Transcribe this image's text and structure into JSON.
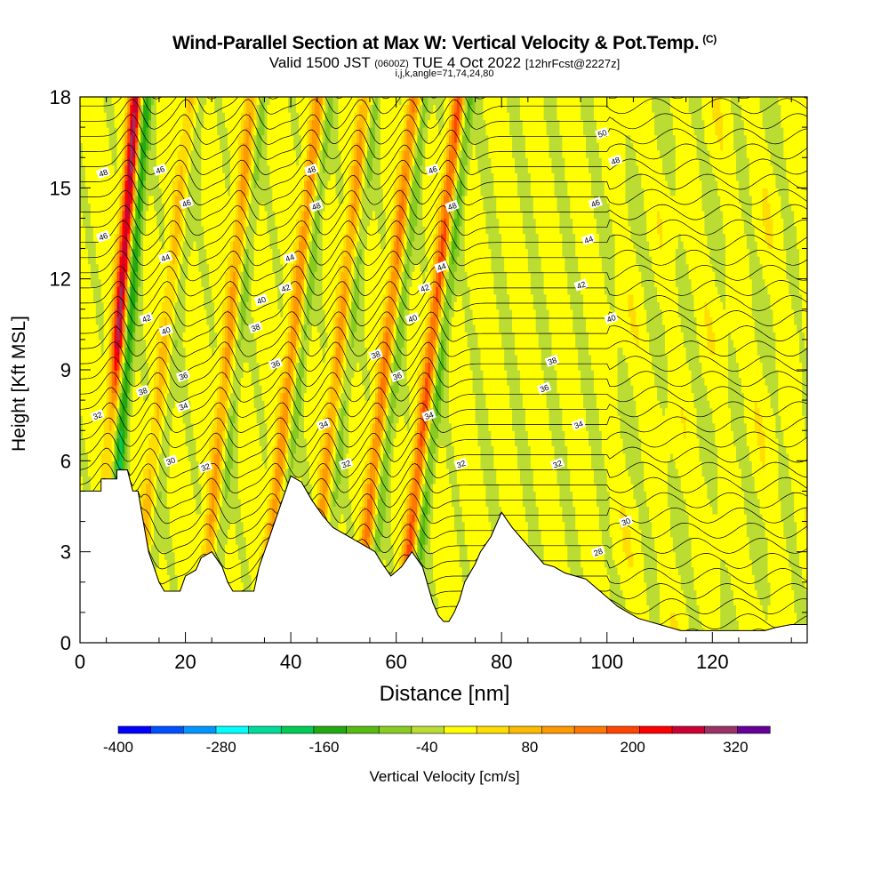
{
  "header": {
    "title": "Wind-Parallel Section at Max W: Vertical Velocity & Pot.Temp.",
    "copyright": "(C)",
    "valid_prefix": "Valid 1500 JST",
    "valid_utc": "(0600Z)",
    "valid_date": "TUE 4 Oct 2022",
    "forecast": "[12hrFcst@2227z]",
    "indices": "i,j,k,angle=71,74,24,80"
  },
  "chart_data": {
    "type": "heatmap",
    "xlabel": "Distance [nm]",
    "ylabel": "Height [Kft MSL]",
    "xlim": [
      0,
      138
    ],
    "ylim": [
      0,
      18
    ],
    "x_ticks": [
      0,
      20,
      40,
      60,
      80,
      100,
      120
    ],
    "y_ticks": [
      0,
      3,
      6,
      9,
      12,
      15,
      18
    ],
    "colorbar": {
      "label": "Vertical Velocity [cm/s]",
      "min": -400,
      "max": 360,
      "step": 40,
      "tick_labels": [
        "-400",
        "-280",
        "-160",
        "-40",
        "80",
        "200",
        "320"
      ],
      "tick_values": [
        -400,
        -280,
        -160,
        -40,
        80,
        200,
        320
      ],
      "colors": [
        "#0000ff",
        "#0050ff",
        "#0096ff",
        "#00ffff",
        "#00dd99",
        "#00cc55",
        "#22aa11",
        "#55bb11",
        "#88cc22",
        "#bbdd33",
        "#ffff00",
        "#ffdd00",
        "#ffbb00",
        "#ff9900",
        "#ff7700",
        "#ff4400",
        "#ff0000",
        "#cc0033",
        "#993366",
        "#660099"
      ]
    },
    "background_color": "#f7f000",
    "terrain_kft": [
      [
        0,
        5
      ],
      [
        2,
        5
      ],
      [
        4,
        5
      ],
      [
        4,
        5.4
      ],
      [
        7,
        5.4
      ],
      [
        7,
        5.7
      ],
      [
        9,
        5.7
      ],
      [
        10,
        5
      ],
      [
        11,
        5
      ],
      [
        12,
        4
      ],
      [
        13,
        3
      ],
      [
        14,
        2.5
      ],
      [
        15,
        2
      ],
      [
        16,
        1.7
      ],
      [
        19,
        1.7
      ],
      [
        20,
        2.2
      ],
      [
        22,
        2.4
      ],
      [
        23,
        2.8
      ],
      [
        25,
        3
      ],
      [
        27,
        2.5
      ],
      [
        28,
        2
      ],
      [
        29,
        1.7
      ],
      [
        33,
        1.7
      ],
      [
        34,
        2.5
      ],
      [
        36,
        3.5
      ],
      [
        38,
        4.5
      ],
      [
        40,
        5.5
      ],
      [
        42,
        5.3
      ],
      [
        44,
        4.7
      ],
      [
        46,
        4.2
      ],
      [
        48,
        3.8
      ],
      [
        50,
        3.6
      ],
      [
        52,
        3.4
      ],
      [
        54,
        3.2
      ],
      [
        56,
        3
      ],
      [
        57,
        2.7
      ],
      [
        59,
        2.2
      ],
      [
        61,
        2.5
      ],
      [
        63,
        3
      ],
      [
        65,
        2.5
      ],
      [
        66,
        1.9
      ],
      [
        67,
        1.3
      ],
      [
        68,
        0.9
      ],
      [
        69,
        0.7
      ],
      [
        70,
        0.7
      ],
      [
        71,
        1
      ],
      [
        72,
        1.4
      ],
      [
        73,
        2
      ],
      [
        75,
        2.6
      ],
      [
        76,
        3
      ],
      [
        78,
        3.5
      ],
      [
        80,
        4.3
      ],
      [
        82,
        3.8
      ],
      [
        84,
        3.4
      ],
      [
        86,
        3
      ],
      [
        88,
        2.6
      ],
      [
        90,
        2.5
      ],
      [
        92,
        2.3
      ],
      [
        94,
        2.2
      ],
      [
        96,
        2.1
      ],
      [
        98,
        1.8
      ],
      [
        100,
        1.5
      ],
      [
        102,
        1.2
      ],
      [
        104,
        1
      ],
      [
        106,
        0.8
      ],
      [
        110,
        0.6
      ],
      [
        114,
        0.4
      ],
      [
        130,
        0.4
      ],
      [
        132,
        0.5
      ],
      [
        135,
        0.6
      ],
      [
        138,
        0.6
      ]
    ],
    "updraft_bands": [
      {
        "x0": 5.6,
        "z0": 6,
        "slope": 0.42,
        "strength": 320
      },
      {
        "x0": 13.8,
        "z0": 6,
        "slope": 0.6,
        "strength": 80
      },
      {
        "x0": 25,
        "z0": 4,
        "slope": 0.55,
        "strength": 120
      },
      {
        "x0": 38,
        "z0": 6,
        "slope": 0.62,
        "strength": 140
      },
      {
        "x0": 47,
        "z0": 6,
        "slope": 0.6,
        "strength": 120
      },
      {
        "x0": 56,
        "z0": 6,
        "slope": 0.62,
        "strength": 160
      },
      {
        "x0": 64.4,
        "z0": 6,
        "slope": 0.63,
        "strength": 200
      }
    ],
    "contour_labels": [
      {
        "x": 4.4,
        "z": 15.5,
        "text": "48"
      },
      {
        "x": 15.2,
        "z": 15.6,
        "text": "46"
      },
      {
        "x": 20.2,
        "z": 14.5,
        "text": "46"
      },
      {
        "x": 43.9,
        "z": 15.6,
        "text": "48"
      },
      {
        "x": 44.8,
        "z": 14.4,
        "text": "48"
      },
      {
        "x": 66.9,
        "z": 15.6,
        "text": "46"
      },
      {
        "x": 70.6,
        "z": 14.4,
        "text": "48"
      },
      {
        "x": 99.1,
        "z": 16.8,
        "text": "50"
      },
      {
        "x": 101.6,
        "z": 15.9,
        "text": "48"
      },
      {
        "x": 97.8,
        "z": 14.5,
        "text": "46"
      },
      {
        "x": 96.5,
        "z": 13.3,
        "text": "44"
      },
      {
        "x": 68.6,
        "z": 12.4,
        "text": "44"
      },
      {
        "x": 16.2,
        "z": 12.7,
        "text": "44"
      },
      {
        "x": 39.8,
        "z": 12.7,
        "text": "44"
      },
      {
        "x": 4.4,
        "z": 13.4,
        "text": "46"
      },
      {
        "x": 39.0,
        "z": 11.7,
        "text": "42"
      },
      {
        "x": 65.4,
        "z": 11.7,
        "text": "42"
      },
      {
        "x": 95.1,
        "z": 11.8,
        "text": "42"
      },
      {
        "x": 34.4,
        "z": 11.3,
        "text": "40"
      },
      {
        "x": 63.1,
        "z": 10.7,
        "text": "40"
      },
      {
        "x": 100.8,
        "z": 10.7,
        "text": "40"
      },
      {
        "x": 12.6,
        "z": 10.7,
        "text": "42"
      },
      {
        "x": 16.3,
        "z": 10.3,
        "text": "40"
      },
      {
        "x": 33.3,
        "z": 10.4,
        "text": "38"
      },
      {
        "x": 56.1,
        "z": 9.5,
        "text": "38"
      },
      {
        "x": 89.6,
        "z": 9.3,
        "text": "38"
      },
      {
        "x": 37.1,
        "z": 9.2,
        "text": "36"
      },
      {
        "x": 19.6,
        "z": 8.8,
        "text": "36"
      },
      {
        "x": 60.2,
        "z": 8.8,
        "text": "36"
      },
      {
        "x": 88.1,
        "z": 8.4,
        "text": "36"
      },
      {
        "x": 11.9,
        "z": 8.3,
        "text": "38"
      },
      {
        "x": 19.6,
        "z": 7.8,
        "text": "34"
      },
      {
        "x": 3.3,
        "z": 7.5,
        "text": "32"
      },
      {
        "x": 66.2,
        "z": 7.5,
        "text": "34"
      },
      {
        "x": 46.2,
        "z": 7.2,
        "text": "34"
      },
      {
        "x": 94.6,
        "z": 7.2,
        "text": "34"
      },
      {
        "x": 17.2,
        "z": 6.0,
        "text": "30"
      },
      {
        "x": 23.8,
        "z": 5.8,
        "text": "32"
      },
      {
        "x": 50.5,
        "z": 5.9,
        "text": "32"
      },
      {
        "x": 72.3,
        "z": 5.9,
        "text": "32"
      },
      {
        "x": 90.6,
        "z": 5.9,
        "text": "32"
      },
      {
        "x": 103.6,
        "z": 4.0,
        "text": "30"
      },
      {
        "x": 98.3,
        "z": 3.0,
        "text": "28"
      }
    ]
  }
}
